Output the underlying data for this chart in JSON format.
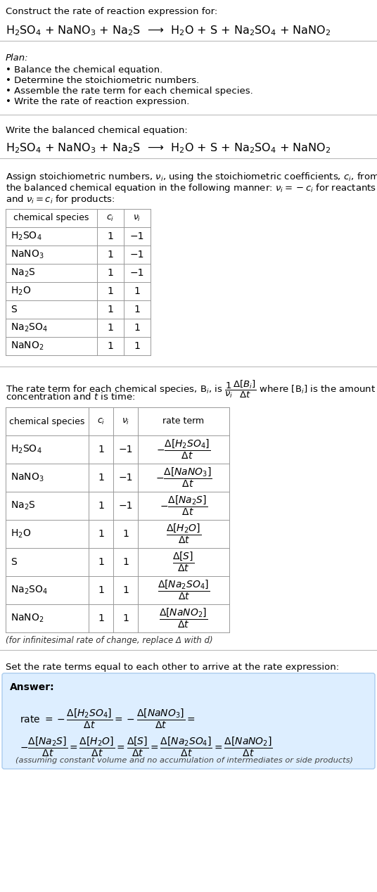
{
  "bg_color": "#ffffff",
  "title_line1": "Construct the rate of reaction expression for:",
  "reaction_equation": "H$_2$SO$_4$ + NaNO$_3$ + Na$_2$S  ⟶  H$_2$O + S + Na$_2$SO$_4$ + NaNO$_2$",
  "plan_title": "Plan:",
  "plan_items": [
    "• Balance the chemical equation.",
    "• Determine the stoichiometric numbers.",
    "• Assemble the rate term for each chemical species.",
    "• Write the rate of reaction expression."
  ],
  "section2_title": "Write the balanced chemical equation:",
  "section2_eq": "H$_2$SO$_4$ + NaNO$_3$ + Na$_2$S  ⟶  H$_2$O + S + Na$_2$SO$_4$ + NaNO$_2$",
  "section3_intro_lines": [
    "Assign stoichiometric numbers, $\\nu_i$, using the stoichiometric coefficients, $c_i$, from",
    "the balanced chemical equation in the following manner: $\\nu_i = -c_i$ for reactants",
    "and $\\nu_i = c_i$ for products:"
  ],
  "table1_headers": [
    "chemical species",
    "$c_i$",
    "$\\nu_i$"
  ],
  "table1_rows": [
    [
      "H$_2$SO$_4$",
      "1",
      "−1"
    ],
    [
      "NaNO$_3$",
      "1",
      "−1"
    ],
    [
      "Na$_2$S",
      "1",
      "−1"
    ],
    [
      "H$_2$O",
      "1",
      "1"
    ],
    [
      "S",
      "1",
      "1"
    ],
    [
      "Na$_2$SO$_4$",
      "1",
      "1"
    ],
    [
      "NaNO$_2$",
      "1",
      "1"
    ]
  ],
  "section4_intro_lines": [
    "The rate term for each chemical species, B$_i$, is $\\dfrac{1}{\\nu_i}\\dfrac{\\Delta[B_i]}{\\Delta t}$ where [B$_i$] is the amount",
    "concentration and $t$ is time:"
  ],
  "table2_headers": [
    "chemical species",
    "$c_i$",
    "$\\nu_i$",
    "rate term"
  ],
  "table2_rows": [
    [
      "H$_2$SO$_4$",
      "1",
      "−1",
      "$-\\dfrac{\\Delta[H_2SO_4]}{\\Delta t}$"
    ],
    [
      "NaNO$_3$",
      "1",
      "−1",
      "$-\\dfrac{\\Delta[NaNO_3]}{\\Delta t}$"
    ],
    [
      "Na$_2$S",
      "1",
      "−1",
      "$-\\dfrac{\\Delta[Na_2S]}{\\Delta t}$"
    ],
    [
      "H$_2$O",
      "1",
      "1",
      "$\\dfrac{\\Delta[H_2O]}{\\Delta t}$"
    ],
    [
      "S",
      "1",
      "1",
      "$\\dfrac{\\Delta[S]}{\\Delta t}$"
    ],
    [
      "Na$_2$SO$_4$",
      "1",
      "1",
      "$\\dfrac{\\Delta[Na_2SO_4]}{\\Delta t}$"
    ],
    [
      "NaNO$_2$",
      "1",
      "1",
      "$\\dfrac{\\Delta[NaNO_2]}{\\Delta t}$"
    ]
  ],
  "infinitesimal_note": "(for infinitesimal rate of change, replace Δ with d)",
  "section5_intro": "Set the rate terms equal to each other to arrive at the rate expression:",
  "answer_label": "Answer:",
  "rate_line1": "rate $= -\\dfrac{\\Delta[H_2SO_4]}{\\Delta t} = -\\dfrac{\\Delta[NaNO_3]}{\\Delta t} =$",
  "rate_line2": "$-\\dfrac{\\Delta[Na_2S]}{\\Delta t} = \\dfrac{\\Delta[H_2O]}{\\Delta t} = \\dfrac{\\Delta[S]}{\\Delta t} = \\dfrac{\\Delta[Na_2SO_4]}{\\Delta t} = \\dfrac{\\Delta[NaNO_2]}{\\Delta t}$",
  "answer_note": "(assuming constant volume and no accumulation of intermediates or side products)",
  "answer_box_color": "#ddeeff",
  "line_color": "#bbbbbb",
  "table_line_color": "#999999"
}
